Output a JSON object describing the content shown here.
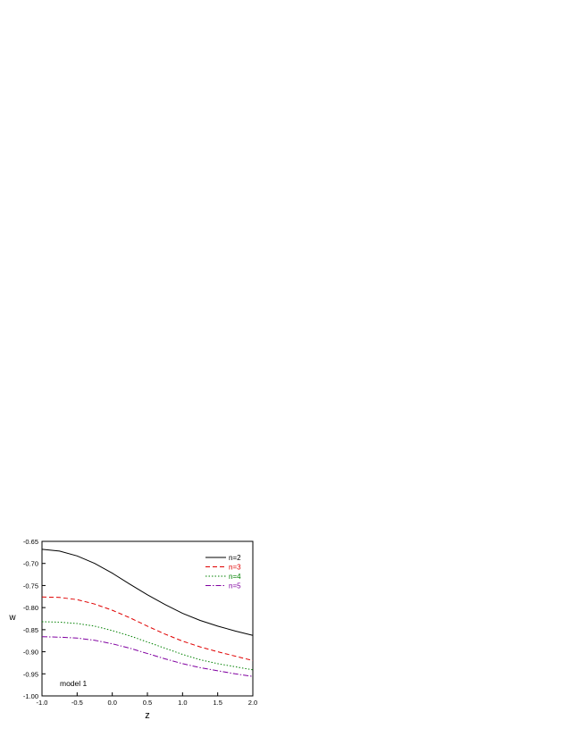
{
  "chart_data": {
    "type": "line",
    "xlabel": "z",
    "ylabel": "w",
    "xlim": [
      -1.0,
      2.0
    ],
    "ylim": [
      -1.0,
      -0.65
    ],
    "x_ticks": [
      -1.0,
      -0.5,
      0.0,
      0.5,
      1.0,
      1.5,
      2.0
    ],
    "x_tick_labels": [
      "-1.0",
      "-0.5",
      "0.0",
      "0.5",
      "1.0",
      "1.5",
      "2.0"
    ],
    "y_ticks": [
      -0.65,
      -0.7,
      -0.75,
      -0.8,
      -0.85,
      -0.9,
      -0.95,
      -1.0
    ],
    "y_tick_labels": [
      "-0.65",
      "-0.70",
      "-0.75",
      "-0.80",
      "-0.85",
      "-0.90",
      "-0.95",
      "-1.00"
    ],
    "grid": false,
    "legend_position": "top-right",
    "annotation": "model 1",
    "x": [
      -1.0,
      -0.75,
      -0.5,
      -0.25,
      0.0,
      0.25,
      0.5,
      0.75,
      1.0,
      1.25,
      1.5,
      1.75,
      2.0
    ],
    "series": [
      {
        "name": "n=2",
        "color": "#000000",
        "dash": "solid",
        "values": [
          -0.668,
          -0.672,
          -0.683,
          -0.7,
          -0.722,
          -0.747,
          -0.771,
          -0.793,
          -0.813,
          -0.829,
          -0.842,
          -0.853,
          -0.863
        ]
      },
      {
        "name": "n=3",
        "color": "#e00000",
        "dash": "dashed",
        "values": [
          -0.776,
          -0.777,
          -0.782,
          -0.792,
          -0.806,
          -0.823,
          -0.842,
          -0.86,
          -0.876,
          -0.889,
          -0.9,
          -0.91,
          -0.92
        ]
      },
      {
        "name": "n=4",
        "color": "#008000",
        "dash": "dotted",
        "values": [
          -0.832,
          -0.833,
          -0.836,
          -0.842,
          -0.852,
          -0.864,
          -0.878,
          -0.892,
          -0.906,
          -0.918,
          -0.927,
          -0.934,
          -0.941
        ]
      },
      {
        "name": "n=5",
        "color": "#8000a0",
        "dash": "dashdot",
        "values": [
          -0.866,
          -0.867,
          -0.869,
          -0.874,
          -0.882,
          -0.892,
          -0.904,
          -0.916,
          -0.927,
          -0.936,
          -0.943,
          -0.95,
          -0.956
        ]
      }
    ]
  }
}
